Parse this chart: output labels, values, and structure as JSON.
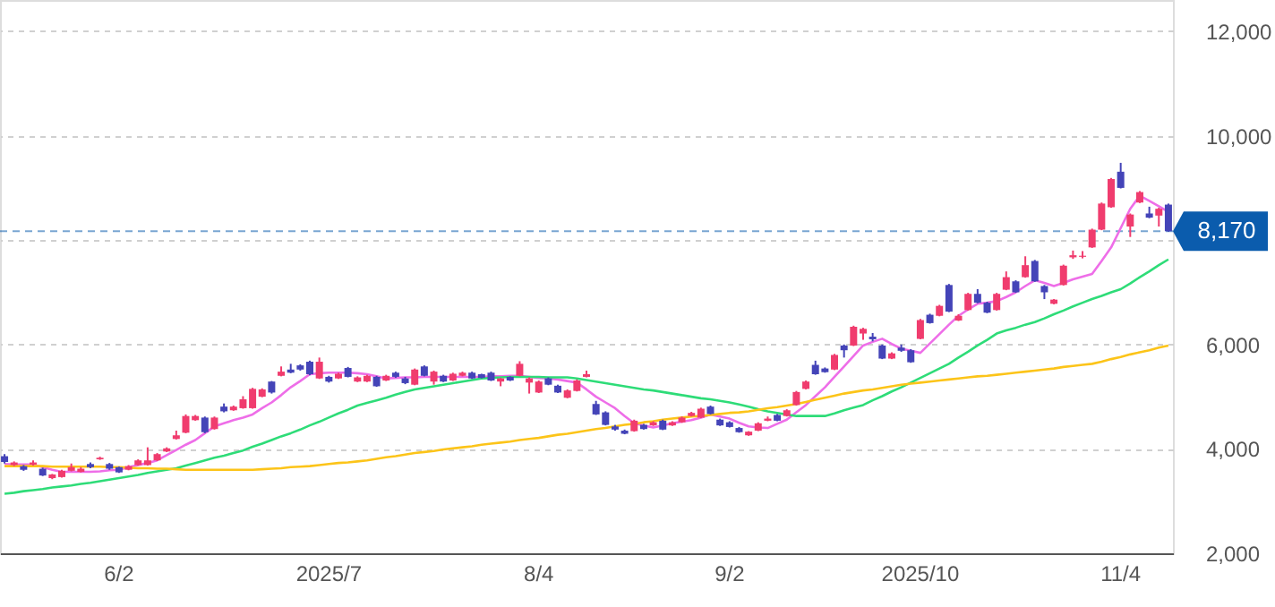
{
  "chart_data": {
    "type": "candlestick",
    "categories": [
      null,
      null,
      null,
      null,
      null,
      null,
      null,
      null,
      null,
      null,
      null,
      null,
      "6/2",
      null,
      null,
      null,
      null,
      null,
      null,
      null,
      null,
      null,
      null,
      null,
      null,
      null,
      null,
      null,
      null,
      null,
      null,
      null,
      null,
      null,
      "2025/7",
      null,
      null,
      null,
      null,
      null,
      null,
      null,
      null,
      null,
      null,
      null,
      null,
      null,
      null,
      null,
      null,
      null,
      null,
      null,
      null,
      null,
      "8/4",
      null,
      null,
      null,
      null,
      null,
      null,
      null,
      null,
      null,
      null,
      null,
      null,
      null,
      null,
      null,
      null,
      null,
      null,
      null,
      "9/2",
      null,
      null,
      null,
      null,
      null,
      null,
      null,
      null,
      null,
      null,
      null,
      null,
      null,
      null,
      null,
      null,
      null,
      null,
      null,
      "2025/10",
      null,
      null,
      null,
      null,
      null,
      null,
      null,
      null,
      null,
      null,
      null,
      null,
      null,
      null,
      null,
      null,
      null,
      null,
      null,
      null,
      "11/4",
      null,
      null,
      null,
      null,
      null
    ],
    "ohlc": [
      [
        3860,
        3900,
        3720,
        3750
      ],
      [
        3690,
        3760,
        3670,
        3740
      ],
      [
        3670,
        3690,
        3580,
        3600
      ],
      [
        3700,
        3780,
        3680,
        3740
      ],
      [
        3620,
        3640,
        3480,
        3490
      ],
      [
        3440,
        3520,
        3420,
        3510
      ],
      [
        3460,
        3600,
        3450,
        3580
      ],
      [
        3580,
        3720,
        3570,
        3650
      ],
      [
        3560,
        3650,
        3550,
        3620
      ],
      [
        3710,
        3740,
        3630,
        3650
      ],
      [
        3800,
        3850,
        3790,
        3830
      ],
      [
        3710,
        3730,
        3600,
        3620
      ],
      [
        3650,
        3660,
        3540,
        3550
      ],
      [
        3600,
        3690,
        3590,
        3670
      ],
      [
        3690,
        3800,
        3680,
        3780
      ],
      [
        3690,
        4030,
        3680,
        3780
      ],
      [
        3780,
        3920,
        3770,
        3900
      ],
      [
        3950,
        4030,
        3940,
        4010
      ],
      [
        4190,
        4350,
        4180,
        4260
      ],
      [
        4310,
        4660,
        4300,
        4630
      ],
      [
        4550,
        4650,
        4540,
        4630
      ],
      [
        4600,
        4620,
        4300,
        4320
      ],
      [
        4380,
        4620,
        4370,
        4600
      ],
      [
        4810,
        4870,
        4700,
        4720
      ],
      [
        4740,
        4830,
        4730,
        4810
      ],
      [
        4780,
        5010,
        4770,
        4950
      ],
      [
        4780,
        5170,
        4770,
        5150
      ],
      [
        5000,
        5160,
        4990,
        5140
      ],
      [
        5290,
        5300,
        5060,
        5080
      ],
      [
        5400,
        5580,
        5390,
        5480
      ],
      [
        5520,
        5630,
        5450,
        5460
      ],
      [
        5600,
        5620,
        5500,
        5520
      ],
      [
        5670,
        5690,
        5410,
        5430
      ],
      [
        5350,
        5750,
        5340,
        5670
      ],
      [
        5380,
        5400,
        5270,
        5290
      ],
      [
        5350,
        5460,
        5340,
        5440
      ],
      [
        5550,
        5570,
        5370,
        5380
      ],
      [
        5290,
        5390,
        5280,
        5370
      ],
      [
        5290,
        5420,
        5280,
        5400
      ],
      [
        5380,
        5400,
        5190,
        5200
      ],
      [
        5310,
        5420,
        5300,
        5400
      ],
      [
        5460,
        5480,
        5360,
        5380
      ],
      [
        5350,
        5380,
        5240,
        5260
      ],
      [
        5230,
        5540,
        5220,
        5520
      ],
      [
        5580,
        5600,
        5390,
        5400
      ],
      [
        5290,
        5500,
        5230,
        5480
      ],
      [
        5400,
        5420,
        5280,
        5290
      ],
      [
        5310,
        5460,
        5300,
        5440
      ],
      [
        5400,
        5480,
        5390,
        5460
      ],
      [
        5460,
        5480,
        5340,
        5350
      ],
      [
        5430,
        5440,
        5350,
        5360
      ],
      [
        5460,
        5480,
        5300,
        5310
      ],
      [
        5290,
        5360,
        5200,
        5350
      ],
      [
        5380,
        5390,
        5300,
        5310
      ],
      [
        5400,
        5680,
        5390,
        5630
      ],
      [
        5270,
        5370,
        5060,
        5350
      ],
      [
        5080,
        5310,
        5070,
        5290
      ],
      [
        5350,
        5370,
        5220,
        5230
      ],
      [
        5210,
        5230,
        5070,
        5080
      ],
      [
        4980,
        5140,
        4970,
        5120
      ],
      [
        5110,
        5330,
        5100,
        5310
      ],
      [
        5380,
        5500,
        5370,
        5430
      ],
      [
        4860,
        4920,
        4650,
        4660
      ],
      [
        4700,
        4720,
        4450,
        4460
      ],
      [
        4430,
        4460,
        4350,
        4370
      ],
      [
        4350,
        4370,
        4280,
        4290
      ],
      [
        4340,
        4560,
        4330,
        4540
      ],
      [
        4460,
        4480,
        4370,
        4380
      ],
      [
        4450,
        4530,
        4440,
        4510
      ],
      [
        4540,
        4560,
        4360,
        4370
      ],
      [
        4450,
        4530,
        4440,
        4510
      ],
      [
        4510,
        4620,
        4500,
        4600
      ],
      [
        4630,
        4710,
        4620,
        4690
      ],
      [
        4600,
        4790,
        4590,
        4770
      ],
      [
        4810,
        4830,
        4660,
        4670
      ],
      [
        4560,
        4580,
        4440,
        4450
      ],
      [
        4510,
        4530,
        4410,
        4420
      ],
      [
        4400,
        4420,
        4310,
        4320
      ],
      [
        4260,
        4340,
        4250,
        4330
      ],
      [
        4350,
        4510,
        4340,
        4490
      ],
      [
        4540,
        4620,
        4530,
        4580
      ],
      [
        4650,
        4670,
        4530,
        4540
      ],
      [
        4630,
        4760,
        4620,
        4740
      ],
      [
        4840,
        5110,
        4830,
        5090
      ],
      [
        5150,
        5310,
        5140,
        5290
      ],
      [
        5610,
        5690,
        5420,
        5430
      ],
      [
        5540,
        5560,
        5460,
        5470
      ],
      [
        5520,
        5820,
        5510,
        5800
      ],
      [
        5980,
        6000,
        5750,
        5890
      ],
      [
        5980,
        6360,
        5970,
        6340
      ],
      [
        6210,
        6320,
        6090,
        6300
      ],
      [
        6150,
        6220,
        6060,
        6100
      ],
      [
        5980,
        6000,
        5720,
        5730
      ],
      [
        5730,
        5850,
        5720,
        5830
      ],
      [
        5940,
        6000,
        5860,
        5880
      ],
      [
        5890,
        5910,
        5650,
        5660
      ],
      [
        6110,
        6490,
        6100,
        6470
      ],
      [
        6570,
        6590,
        6400,
        6410
      ],
      [
        6550,
        6760,
        6540,
        6740
      ],
      [
        7140,
        7160,
        6620,
        6630
      ],
      [
        6460,
        6580,
        6450,
        6550
      ],
      [
        6660,
        6990,
        6650,
        6970
      ],
      [
        6970,
        7060,
        6790,
        6800
      ],
      [
        6800,
        6820,
        6600,
        6610
      ],
      [
        6660,
        6990,
        6650,
        6970
      ],
      [
        7050,
        7400,
        7040,
        7290
      ],
      [
        7210,
        7230,
        6990,
        7000
      ],
      [
        7290,
        7690,
        7280,
        7520
      ],
      [
        7600,
        7620,
        7200,
        7210
      ],
      [
        7120,
        7140,
        6870,
        7000
      ],
      [
        6780,
        6870,
        6770,
        6860
      ],
      [
        7140,
        7530,
        7130,
        7510
      ],
      [
        7670,
        7800,
        7640,
        7710
      ],
      [
        7680,
        7790,
        7650,
        7700
      ],
      [
        7860,
        8220,
        7850,
        8200
      ],
      [
        8200,
        8720,
        8190,
        8700
      ],
      [
        8630,
        9190,
        8620,
        9170
      ],
      [
        9310,
        9480,
        8990,
        9000
      ],
      [
        8260,
        8510,
        8060,
        8490
      ],
      [
        8720,
        8940,
        8710,
        8920
      ],
      [
        8510,
        8640,
        8420,
        8430
      ],
      [
        8470,
        8620,
        8260,
        8600
      ],
      [
        8680,
        8700,
        8160,
        8170
      ]
    ],
    "colors": [
      "#4444b8",
      "#f03c6e",
      "#4444b8",
      "#f03c6e",
      "#4444b8",
      "#f03c6e",
      "#f03c6e",
      "#f03c6e",
      "#f03c6e",
      "#4444b8",
      "#f03c6e",
      "#4444b8",
      "#4444b8",
      "#f03c6e",
      "#f03c6e",
      "#f03c6e",
      "#f03c6e",
      "#f03c6e",
      "#f03c6e",
      "#f03c6e",
      "#f03c6e",
      "#4444b8",
      "#f03c6e",
      "#4444b8",
      "#f03c6e",
      "#f03c6e",
      "#f03c6e",
      "#f03c6e",
      "#4444b8",
      "#f03c6e",
      "#4444b8",
      "#4444b8",
      "#4444b8",
      "#f03c6e",
      "#4444b8",
      "#f03c6e",
      "#4444b8",
      "#f03c6e",
      "#f03c6e",
      "#4444b8",
      "#f03c6e",
      "#4444b8",
      "#4444b8",
      "#f03c6e",
      "#4444b8",
      "#f03c6e",
      "#4444b8",
      "#f03c6e",
      "#f03c6e",
      "#4444b8",
      "#4444b8",
      "#4444b8",
      "#f03c6e",
      "#4444b8",
      "#f03c6e",
      "#f03c6e",
      "#f03c6e",
      "#4444b8",
      "#4444b8",
      "#f03c6e",
      "#f03c6e",
      "#f03c6e",
      "#4444b8",
      "#4444b8",
      "#4444b8",
      "#4444b8",
      "#f03c6e",
      "#4444b8",
      "#f03c6e",
      "#4444b8",
      "#f03c6e",
      "#f03c6e",
      "#f03c6e",
      "#f03c6e",
      "#4444b8",
      "#4444b8",
      "#4444b8",
      "#4444b8",
      "#f03c6e",
      "#f03c6e",
      "#f03c6e",
      "#4444b8",
      "#f03c6e",
      "#f03c6e",
      "#f03c6e",
      "#4444b8",
      "#4444b8",
      "#f03c6e",
      "#4444b8",
      "#f03c6e",
      "#f03c6e",
      "#4444b8",
      "#4444b8",
      "#f03c6e",
      "#4444b8",
      "#4444b8",
      "#f03c6e",
      "#4444b8",
      "#f03c6e",
      "#4444b8",
      "#f03c6e",
      "#f03c6e",
      "#4444b8",
      "#4444b8",
      "#f03c6e",
      "#f03c6e",
      "#4444b8",
      "#f03c6e",
      "#4444b8",
      "#4444b8",
      "#f03c6e",
      "#f03c6e",
      "#f03c6e",
      "#f03c6e",
      "#f03c6e",
      "#f03c6e",
      "#f03c6e",
      "#4444b8",
      "#f03c6e",
      "#f03c6e",
      "#4444b8",
      "#f03c6e",
      "#4444b8"
    ],
    "series": [
      {
        "type": "line",
        "color": "#ee6ee8",
        "values": [
          3710,
          3700,
          3700,
          3700,
          3650,
          3600,
          3560,
          3560,
          3560,
          3560,
          3570,
          3590,
          3600,
          3650,
          3690,
          3730,
          3780,
          3880,
          3980,
          4080,
          4170,
          4300,
          4430,
          4490,
          4550,
          4600,
          4660,
          4780,
          4890,
          5030,
          5180,
          5300,
          5430,
          5450,
          5460,
          5460,
          5460,
          5450,
          5430,
          5390,
          5350,
          5360,
          5370,
          5370,
          5380,
          5380,
          5380,
          5380,
          5380,
          5380,
          5380,
          5390,
          5390,
          5400,
          5400,
          5380,
          5360,
          5350,
          5330,
          5300,
          5270,
          5140,
          5000,
          4890,
          4780,
          4630,
          4490,
          4450,
          4410,
          4450,
          4490,
          4520,
          4550,
          4600,
          4660,
          4620,
          4580,
          4500,
          4430,
          4410,
          4400,
          4480,
          4560,
          4700,
          4840,
          5010,
          5180,
          5380,
          5580,
          5780,
          5980,
          6050,
          6110,
          6010,
          5920,
          5880,
          5840,
          6020,
          6200,
          6380,
          6550,
          6670,
          6780,
          6800,
          6830,
          6910,
          7000,
          7120,
          7230,
          7180,
          7120,
          7180,
          7250,
          7300,
          7350,
          7600,
          7860,
          8230,
          8600,
          8850,
          8750,
          8650,
          8540
        ]
      },
      {
        "type": "line",
        "color": "#2edc78",
        "values": [
          3140,
          3160,
          3190,
          3210,
          3230,
          3260,
          3280,
          3300,
          3330,
          3350,
          3380,
          3410,
          3440,
          3470,
          3500,
          3540,
          3570,
          3600,
          3630,
          3680,
          3730,
          3780,
          3830,
          3870,
          3920,
          3970,
          4040,
          4100,
          4170,
          4240,
          4300,
          4370,
          4450,
          4520,
          4600,
          4680,
          4750,
          4830,
          4880,
          4930,
          4980,
          5040,
          5090,
          5140,
          5170,
          5200,
          5230,
          5260,
          5290,
          5320,
          5350,
          5360,
          5370,
          5380,
          5380,
          5380,
          5380,
          5370,
          5370,
          5370,
          5350,
          5320,
          5290,
          5260,
          5230,
          5200,
          5170,
          5140,
          5120,
          5090,
          5060,
          5030,
          5000,
          4970,
          4950,
          4920,
          4890,
          4850,
          4810,
          4760,
          4720,
          4690,
          4660,
          4630,
          4630,
          4630,
          4630,
          4680,
          4740,
          4790,
          4840,
          4930,
          5010,
          5100,
          5180,
          5270,
          5360,
          5450,
          5540,
          5630,
          5750,
          5860,
          5980,
          6090,
          6210,
          6270,
          6320,
          6380,
          6430,
          6500,
          6580,
          6650,
          6730,
          6800,
          6870,
          6930,
          7000,
          7060,
          7170,
          7290,
          7400,
          7520,
          7630
        ]
      },
      {
        "type": "line",
        "color": "#fcc419",
        "values": [
          3670,
          3670,
          3670,
          3670,
          3670,
          3660,
          3660,
          3660,
          3660,
          3660,
          3660,
          3650,
          3650,
          3640,
          3630,
          3630,
          3620,
          3620,
          3610,
          3600,
          3600,
          3600,
          3600,
          3600,
          3600,
          3600,
          3600,
          3610,
          3620,
          3630,
          3650,
          3660,
          3670,
          3690,
          3710,
          3730,
          3740,
          3760,
          3780,
          3810,
          3840,
          3860,
          3890,
          3920,
          3940,
          3960,
          3990,
          4010,
          4030,
          4050,
          4080,
          4100,
          4120,
          4140,
          4170,
          4190,
          4210,
          4240,
          4270,
          4290,
          4320,
          4350,
          4380,
          4400,
          4430,
          4460,
          4480,
          4510,
          4530,
          4560,
          4580,
          4600,
          4620,
          4630,
          4650,
          4670,
          4690,
          4700,
          4720,
          4750,
          4780,
          4800,
          4830,
          4860,
          4900,
          4940,
          4980,
          5020,
          5060,
          5090,
          5120,
          5140,
          5170,
          5200,
          5230,
          5250,
          5270,
          5290,
          5310,
          5330,
          5350,
          5370,
          5390,
          5400,
          5420,
          5440,
          5460,
          5480,
          5500,
          5520,
          5540,
          5570,
          5590,
          5610,
          5630,
          5670,
          5720,
          5760,
          5810,
          5850,
          5890,
          5940,
          5980
        ]
      }
    ],
    "ylim": [
      2000,
      12600
    ],
    "yticks": [
      {
        "value": 2000,
        "label": "2,000"
      },
      {
        "value": 4000,
        "label": "4,000"
      },
      {
        "value": 6000,
        "label": "6,000"
      },
      {
        "value": 8000,
        "label": null
      },
      {
        "value": 10000,
        "label": "10,000"
      },
      {
        "value": 12000,
        "label": "12,000"
      }
    ],
    "grid": "y",
    "ref_lines": [
      {
        "axis": "y",
        "value": 8170,
        "label": "8,170",
        "color": "#0b5cad",
        "line_style": "dashed"
      }
    ]
  }
}
